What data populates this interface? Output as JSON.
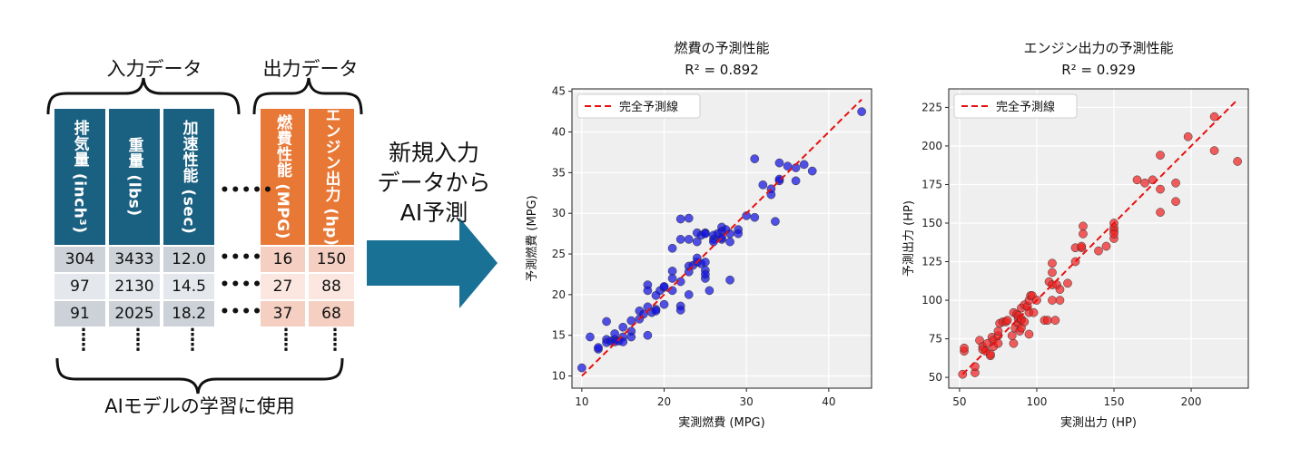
{
  "diagram": {
    "input_label": "入力データ",
    "output_label": "出力データ",
    "columns": [
      {
        "label": "排気量 (inch³)",
        "values": [
          "304",
          "97",
          "91"
        ]
      },
      {
        "label": "重量 (lbs)",
        "values": [
          "3433",
          "2130",
          "2025"
        ]
      },
      {
        "label": "加速性能 (sec)",
        "values": [
          "12.0",
          "14.5",
          "18.2"
        ]
      },
      {
        "label": "燃費性能 (MPG)",
        "values": [
          "16",
          "27",
          "37"
        ]
      },
      {
        "label": "エンジン出力 (hp)",
        "values": [
          "150",
          "88",
          "68"
        ]
      }
    ],
    "training_label": "AIモデルの学習に使用",
    "arrow_lines": [
      "新規入力",
      "データから",
      "AI予測"
    ],
    "hdots": "•••••",
    "vdots": "⋮"
  },
  "chart_data": [
    {
      "type": "scatter",
      "title": "燃費の予測性能",
      "subtitle": "R² = 0.892",
      "xlabel": "実測燃費 (MPG)",
      "ylabel": "予測燃費 (MPG)",
      "xlim": [
        8.8,
        45.2
      ],
      "ylim": [
        8.5,
        45.3
      ],
      "xticks": [
        10,
        20,
        30,
        40
      ],
      "yticks": [
        10,
        15,
        20,
        25,
        30,
        35,
        40,
        45
      ],
      "grid": true,
      "legend": {
        "label": "完全予測線",
        "position": "top-left"
      },
      "point_color": "#1010e0",
      "reference_line": {
        "from": [
          10,
          10
        ],
        "to": [
          44,
          44
        ],
        "color": "#e81010"
      },
      "points": [
        [
          10,
          11
        ],
        [
          11,
          14.8
        ],
        [
          12,
          13.3
        ],
        [
          12,
          13.5
        ],
        [
          13,
          14.5
        ],
        [
          13,
          14.1
        ],
        [
          13,
          16.7
        ],
        [
          13.5,
          14.3
        ],
        [
          14,
          14.5
        ],
        [
          14,
          14.2
        ],
        [
          14,
          15.2
        ],
        [
          14.5,
          14.3
        ],
        [
          15,
          14.8
        ],
        [
          15,
          16
        ],
        [
          15,
          14.2
        ],
        [
          16,
          16.8
        ],
        [
          16,
          15.5
        ],
        [
          16,
          14.8
        ],
        [
          17,
          17
        ],
        [
          17,
          18
        ],
        [
          17.5,
          17.6
        ],
        [
          18,
          21.2
        ],
        [
          18,
          20.5
        ],
        [
          18,
          15
        ],
        [
          18,
          18.5
        ],
        [
          18.5,
          17.8
        ],
        [
          19,
          18.2
        ],
        [
          19,
          19.9
        ],
        [
          19,
          18
        ],
        [
          19.5,
          20.5
        ],
        [
          20,
          20.9
        ],
        [
          20,
          21
        ],
        [
          20,
          18.8
        ],
        [
          21,
          25.7
        ],
        [
          21,
          22.9
        ],
        [
          21,
          22
        ],
        [
          21,
          20.5
        ],
        [
          22,
          18.6
        ],
        [
          22,
          29.3
        ],
        [
          22,
          26.8
        ],
        [
          22,
          21.6
        ],
        [
          22,
          18.1
        ],
        [
          23,
          20
        ],
        [
          23,
          26.8
        ],
        [
          23,
          23.5
        ],
        [
          23,
          29.4
        ],
        [
          23,
          22.8
        ],
        [
          23.5,
          23.6
        ],
        [
          24,
          24
        ],
        [
          24,
          27.6
        ],
        [
          24,
          24.5
        ],
        [
          24,
          26.5
        ],
        [
          24.5,
          27.3
        ],
        [
          24.5,
          23.8
        ],
        [
          25,
          24
        ],
        [
          25,
          27.6
        ],
        [
          25,
          22
        ],
        [
          25,
          23
        ],
        [
          25,
          27.5
        ],
        [
          25,
          22.5
        ],
        [
          25.5,
          20.5
        ],
        [
          26,
          26.8
        ],
        [
          26,
          27.3
        ],
        [
          26,
          26.5
        ],
        [
          26.5,
          27.5
        ],
        [
          27,
          26.8
        ],
        [
          27,
          28.3
        ],
        [
          27,
          27.8
        ],
        [
          27,
          27
        ],
        [
          27.5,
          28
        ],
        [
          28,
          27.5
        ],
        [
          28,
          21.8
        ],
        [
          28,
          26.5
        ],
        [
          29,
          28
        ],
        [
          29,
          27.5
        ],
        [
          30,
          29.7
        ],
        [
          31,
          36.7
        ],
        [
          31,
          29.5
        ],
        [
          32,
          33.5
        ],
        [
          33,
          33
        ],
        [
          33,
          32.3
        ],
        [
          33.5,
          29
        ],
        [
          34,
          34
        ],
        [
          34,
          36.2
        ],
        [
          34,
          34.2
        ],
        [
          35,
          35.8
        ],
        [
          36,
          34
        ],
        [
          36,
          35.6
        ],
        [
          37,
          36
        ],
        [
          38,
          35.2
        ],
        [
          44,
          42.5
        ]
      ]
    },
    {
      "type": "scatter",
      "title": "エンジン出力の予測性能",
      "subtitle": "R² = 0.929",
      "xlabel": "実測出力 (HP)",
      "ylabel": "予測出力 (HP)",
      "xlim": [
        43,
        237
      ],
      "ylim": [
        43,
        237
      ],
      "xticks": [
        50,
        100,
        150,
        200
      ],
      "yticks": [
        50,
        75,
        100,
        125,
        150,
        175,
        200,
        225
      ],
      "grid": true,
      "legend": {
        "label": "完全予測線",
        "position": "top-left"
      },
      "point_color": "#f02020",
      "reference_line": {
        "from": [
          52,
          52
        ],
        "to": [
          230,
          230
        ],
        "color": "#e81010"
      },
      "points": [
        [
          52,
          52
        ],
        [
          53,
          67
        ],
        [
          53,
          69
        ],
        [
          60,
          53
        ],
        [
          60,
          57
        ],
        [
          63,
          74
        ],
        [
          65,
          70
        ],
        [
          65,
          68
        ],
        [
          67,
          67
        ],
        [
          68,
          72
        ],
        [
          70,
          64
        ],
        [
          70,
          65
        ],
        [
          71,
          76
        ],
        [
          72,
          74
        ],
        [
          72,
          70
        ],
        [
          75,
          77
        ],
        [
          75,
          72
        ],
        [
          75,
          80
        ],
        [
          76,
          85
        ],
        [
          78,
          86
        ],
        [
          80,
          86
        ],
        [
          81,
          87
        ],
        [
          84,
          77
        ],
        [
          85,
          72
        ],
        [
          85,
          92
        ],
        [
          86,
          82
        ],
        [
          87,
          91
        ],
        [
          88,
          88
        ],
        [
          88,
          85
        ],
        [
          88,
          90
        ],
        [
          89,
          80
        ],
        [
          90,
          82
        ],
        [
          90,
          87
        ],
        [
          90,
          95
        ],
        [
          90,
          88
        ],
        [
          92,
          97
        ],
        [
          92,
          86
        ],
        [
          94,
          96
        ],
        [
          95,
          78
        ],
        [
          95,
          92
        ],
        [
          95,
          100
        ],
        [
          96,
          103
        ],
        [
          97,
          103
        ],
        [
          98,
          92
        ],
        [
          100,
          100
        ],
        [
          105,
          87
        ],
        [
          107,
          87
        ],
        [
          108,
          112
        ],
        [
          110,
          110
        ],
        [
          110,
          124
        ],
        [
          110,
          118
        ],
        [
          110,
          100
        ],
        [
          112,
          87
        ],
        [
          113,
          110
        ],
        [
          115,
          107
        ],
        [
          115,
          100
        ],
        [
          120,
          111
        ],
        [
          125,
          134
        ],
        [
          125,
          125
        ],
        [
          129,
          134
        ],
        [
          129,
          135
        ],
        [
          130,
          148
        ],
        [
          130,
          143
        ],
        [
          140,
          132
        ],
        [
          145,
          135
        ],
        [
          150,
          150
        ],
        [
          150,
          147
        ],
        [
          150,
          145
        ],
        [
          150,
          140
        ],
        [
          150,
          143
        ],
        [
          165,
          178
        ],
        [
          170,
          176
        ],
        [
          175,
          178
        ],
        [
          180,
          157
        ],
        [
          180,
          194
        ],
        [
          180,
          172
        ],
        [
          190,
          176
        ],
        [
          190,
          164
        ],
        [
          198,
          206
        ],
        [
          215,
          197
        ],
        [
          215,
          219
        ],
        [
          230,
          190
        ]
      ]
    }
  ]
}
